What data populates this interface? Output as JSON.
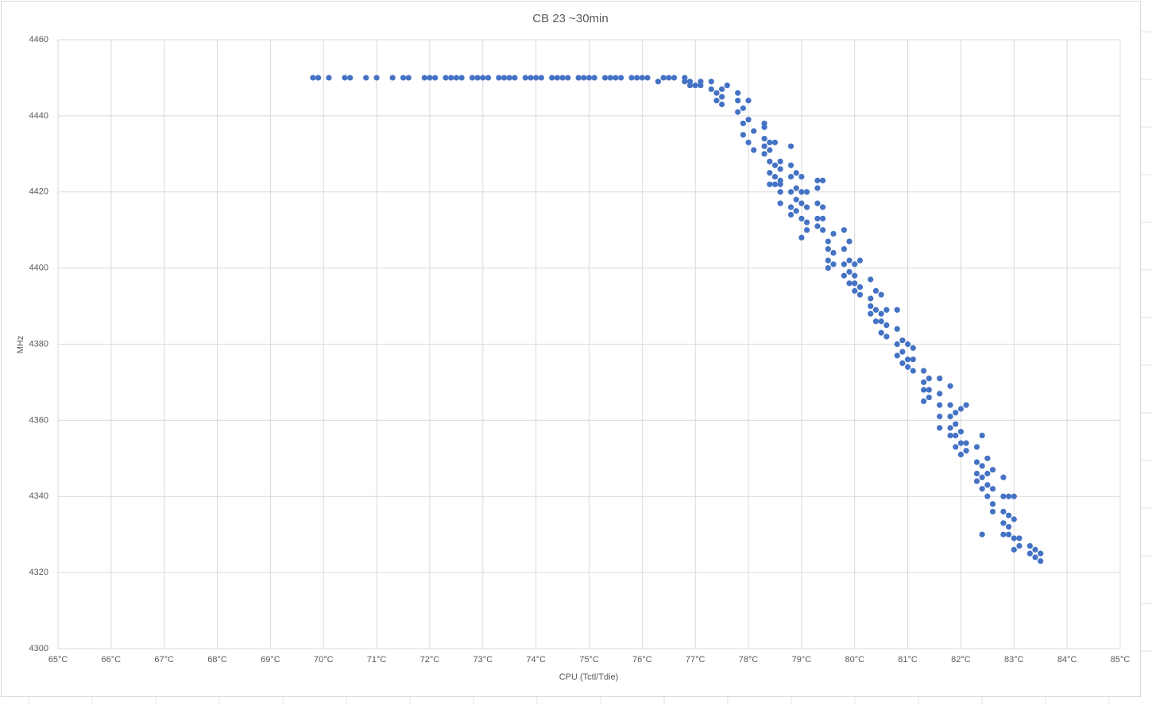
{
  "chart_data": {
    "type": "scatter",
    "title": "CB 23 ~30min",
    "x_label": "CPU (Tctl/Tdie)",
    "y_label": "MHz",
    "color": "#4472c4",
    "grid": true,
    "xlim": [
      65,
      85
    ],
    "xticks": [
      {
        "value": 65,
        "label": "65°C"
      },
      {
        "value": 66,
        "label": "66°C"
      },
      {
        "value": 67,
        "label": "67°C"
      },
      {
        "value": 68,
        "label": "68°C"
      },
      {
        "value": 69,
        "label": "69°C"
      },
      {
        "value": 70,
        "label": "70°C"
      },
      {
        "value": 71,
        "label": "71°C"
      },
      {
        "value": 72,
        "label": "72°C"
      },
      {
        "value": 73,
        "label": "73°C"
      },
      {
        "value": 74,
        "label": "74°C"
      },
      {
        "value": 75,
        "label": "75°C"
      },
      {
        "value": 76,
        "label": "76°C"
      },
      {
        "value": 77,
        "label": "77°C"
      },
      {
        "value": 78,
        "label": "78°C"
      },
      {
        "value": 79,
        "label": "79°C"
      },
      {
        "value": 80,
        "label": "80°C"
      },
      {
        "value": 81,
        "label": "81°C"
      },
      {
        "value": 82,
        "label": "82°C"
      },
      {
        "value": 83,
        "label": "83°C"
      },
      {
        "value": 84,
        "label": "84°C"
      },
      {
        "value": 85,
        "label": "85°C"
      }
    ],
    "ylim": [
      4300,
      4460
    ],
    "yticks": [
      4300,
      4320,
      4340,
      4360,
      4380,
      4400,
      4420,
      4440,
      4460
    ],
    "x": [
      69.8,
      69.9,
      70.1,
      70.4,
      70.5,
      70.8,
      71.0,
      71.3,
      71.5,
      71.6,
      71.9,
      72.0,
      72.1,
      72.3,
      72.4,
      72.5,
      72.6,
      72.8,
      72.9,
      73.0,
      73.1,
      73.3,
      73.4,
      73.5,
      73.6,
      73.8,
      73.9,
      74.0,
      74.1,
      74.3,
      74.4,
      74.5,
      74.6,
      74.8,
      74.9,
      75.0,
      75.1,
      75.3,
      75.4,
      75.5,
      75.6,
      75.8,
      75.9,
      76.0,
      76.1,
      76.3,
      76.4,
      76.5,
      76.6,
      76.8,
      76.8,
      76.9,
      76.9,
      77.0,
      77.1,
      77.1,
      77.3,
      77.3,
      77.4,
      77.4,
      77.5,
      77.5,
      77.5,
      77.6,
      77.8,
      77.8,
      77.8,
      77.9,
      77.9,
      77.9,
      78.0,
      78.0,
      78.0,
      78.1,
      78.1,
      78.3,
      78.3,
      78.3,
      78.3,
      78.3,
      78.4,
      78.4,
      78.4,
      78.4,
      78.4,
      78.5,
      78.5,
      78.5,
      78.5,
      78.6,
      78.6,
      78.6,
      78.6,
      78.6,
      78.6,
      78.8,
      78.8,
      78.8,
      78.8,
      78.8,
      78.8,
      78.9,
      78.9,
      78.9,
      78.9,
      79.0,
      79.0,
      79.0,
      79.0,
      79.0,
      79.1,
      79.1,
      79.1,
      79.1,
      79.3,
      79.3,
      79.3,
      79.3,
      79.3,
      79.4,
      79.4,
      79.4,
      79.4,
      79.5,
      79.5,
      79.5,
      79.5,
      79.6,
      79.6,
      79.6,
      79.8,
      79.8,
      79.8,
      79.8,
      79.9,
      79.9,
      79.9,
      79.9,
      80.0,
      80.0,
      80.0,
      80.0,
      80.1,
      80.1,
      80.1,
      80.3,
      80.3,
      80.3,
      80.3,
      80.4,
      80.4,
      80.4,
      80.5,
      80.5,
      80.5,
      80.5,
      80.6,
      80.6,
      80.6,
      80.8,
      80.8,
      80.8,
      80.8,
      80.9,
      80.9,
      80.9,
      81.0,
      81.0,
      81.0,
      81.1,
      81.1,
      81.1,
      81.3,
      81.3,
      81.3,
      81.3,
      81.4,
      81.4,
      81.4,
      81.6,
      81.6,
      81.6,
      81.6,
      81.6,
      81.8,
      81.8,
      81.8,
      81.8,
      81.8,
      81.9,
      81.9,
      81.9,
      81.9,
      82.0,
      82.0,
      82.0,
      82.0,
      82.1,
      82.1,
      82.1,
      82.3,
      82.3,
      82.3,
      82.3,
      82.4,
      82.4,
      82.4,
      82.4,
      82.4,
      82.5,
      82.5,
      82.5,
      82.5,
      82.6,
      82.6,
      82.6,
      82.6,
      82.8,
      82.8,
      82.8,
      82.8,
      82.8,
      82.9,
      82.9,
      82.9,
      82.9,
      83.0,
      83.0,
      83.0,
      83.0,
      83.1,
      83.1,
      83.3,
      83.3,
      83.4,
      83.4,
      83.5,
      83.5
    ],
    "values": [
      4450,
      4450,
      4450,
      4450,
      4450,
      4450,
      4450,
      4450,
      4450,
      4450,
      4450,
      4450,
      4450,
      4450,
      4450,
      4450,
      4450,
      4450,
      4450,
      4450,
      4450,
      4450,
      4450,
      4450,
      4450,
      4450,
      4450,
      4450,
      4450,
      4450,
      4450,
      4450,
      4450,
      4450,
      4450,
      4450,
      4450,
      4450,
      4450,
      4450,
      4450,
      4450,
      4450,
      4450,
      4450,
      4449,
      4450,
      4450,
      4450,
      4450,
      4449,
      4449,
      4448,
      4448,
      4449,
      4448,
      4449,
      4447,
      4446,
      4444,
      4447,
      4445,
      4443,
      4448,
      4446,
      4444,
      4441,
      4442,
      4438,
      4435,
      4444,
      4439,
      4433,
      4436,
      4431,
      4437,
      4434,
      4432,
      4430,
      4438,
      4431,
      4428,
      4425,
      4433,
      4422,
      4427,
      4424,
      4422,
      4433,
      4426,
      4423,
      4420,
      4417,
      4428,
      4422,
      4427,
      4424,
      4420,
      4416,
      4414,
      4432,
      4425,
      4421,
      4418,
      4415,
      4424,
      4420,
      4417,
      4413,
      4408,
      4420,
      4416,
      4412,
      4410,
      4423,
      4417,
      4413,
      4411,
      4421,
      4416,
      4413,
      4410,
      4423,
      4407,
      4405,
      4402,
      4400,
      4409,
      4404,
      4401,
      4410,
      4405,
      4401,
      4398,
      4402,
      4399,
      4396,
      4407,
      4398,
      4396,
      4394,
      4401,
      4402,
      4395,
      4393,
      4397,
      4392,
      4390,
      4388,
      4394,
      4389,
      4386,
      4393,
      4388,
      4386,
      4383,
      4389,
      4385,
      4382,
      4389,
      4384,
      4380,
      4377,
      4381,
      4378,
      4375,
      4380,
      4376,
      4374,
      4379,
      4376,
      4373,
      4373,
      4370,
      4368,
      4365,
      4371,
      4368,
      4366,
      4371,
      4367,
      4364,
      4361,
      4358,
      4369,
      4364,
      4361,
      4358,
      4356,
      4362,
      4359,
      4356,
      4353,
      4357,
      4354,
      4351,
      4363,
      4364,
      4354,
      4352,
      4353,
      4349,
      4346,
      4344,
      4356,
      4348,
      4345,
      4342,
      4330,
      4350,
      4346,
      4343,
      4340,
      4347,
      4342,
      4338,
      4336,
      4345,
      4340,
      4336,
      4333,
      4330,
      4340,
      4335,
      4332,
      4330,
      4340,
      4334,
      4329,
      4326,
      4329,
      4327,
      4327,
      4325,
      4326,
      4324,
      4325,
      4323
    ]
  }
}
